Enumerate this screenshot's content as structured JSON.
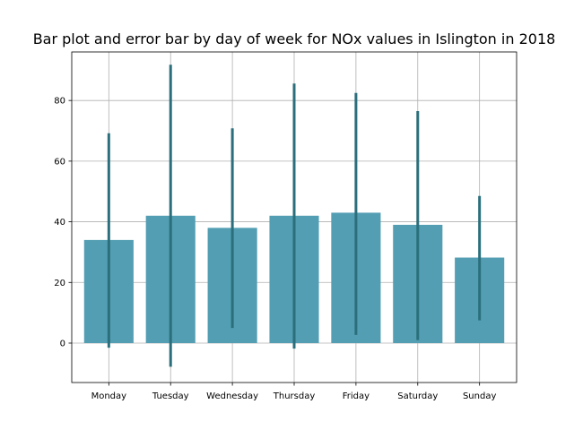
{
  "chart_data": {
    "type": "bar",
    "title": "Bar plot and error bar by day of week for NOx values in Islington in 2018",
    "xlabel": "",
    "ylabel": "",
    "categories": [
      "Monday",
      "Tuesday",
      "Wednesday",
      "Thursday",
      "Friday",
      "Saturday",
      "Sunday"
    ],
    "values": [
      34.0,
      42.0,
      38.0,
      42.0,
      43.0,
      39.0,
      28.2
    ],
    "error_low": [
      -1.5,
      -7.8,
      5.0,
      -1.8,
      2.7,
      1.0,
      7.5
    ],
    "error_high": [
      69.2,
      91.8,
      70.8,
      85.6,
      82.5,
      76.5,
      48.5
    ],
    "ylim": [
      -13,
      96
    ],
    "yticks": [
      0,
      20,
      40,
      60,
      80
    ],
    "grid": true,
    "bar_color": "#539eb3",
    "error_color": "#2b6f7c"
  }
}
